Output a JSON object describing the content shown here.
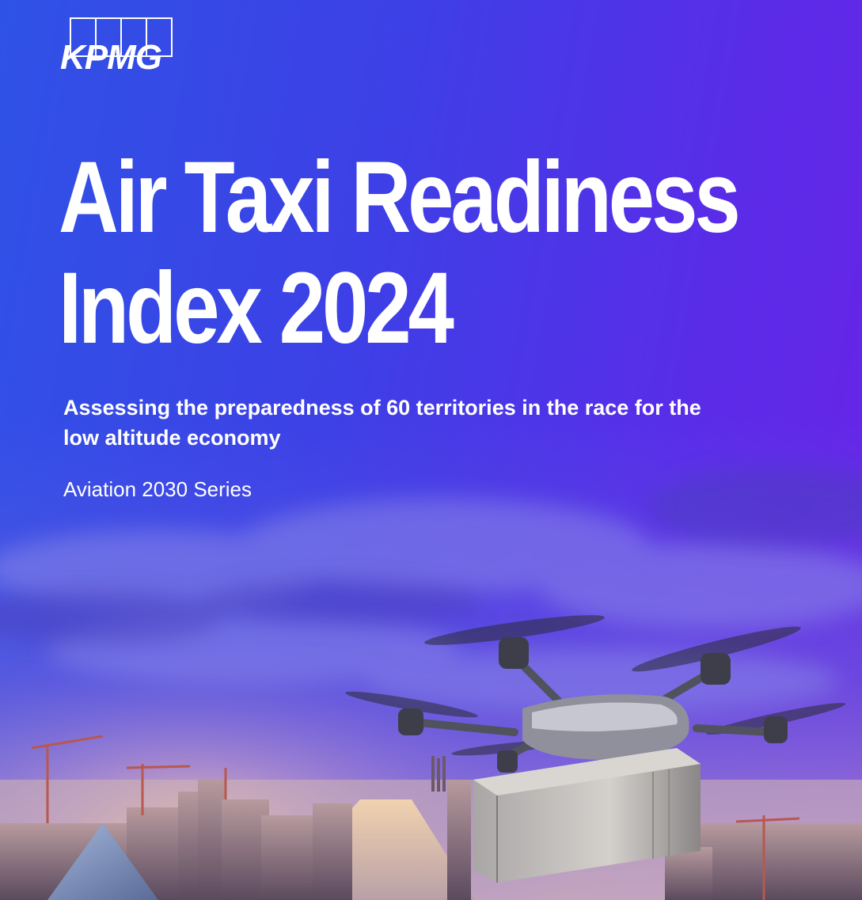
{
  "brand": {
    "logo_text": "KPMG"
  },
  "cover": {
    "title_line1": "Air Taxi Readiness",
    "title_line2": "Index 2024",
    "subtitle": "Assessing the preparedness of 60 territories in the race for the low altitude economy",
    "series": "Aviation 2030 Series"
  },
  "colors": {
    "background_start": "#2f52e6",
    "background_end": "#6a22e6",
    "text": "#ffffff"
  }
}
